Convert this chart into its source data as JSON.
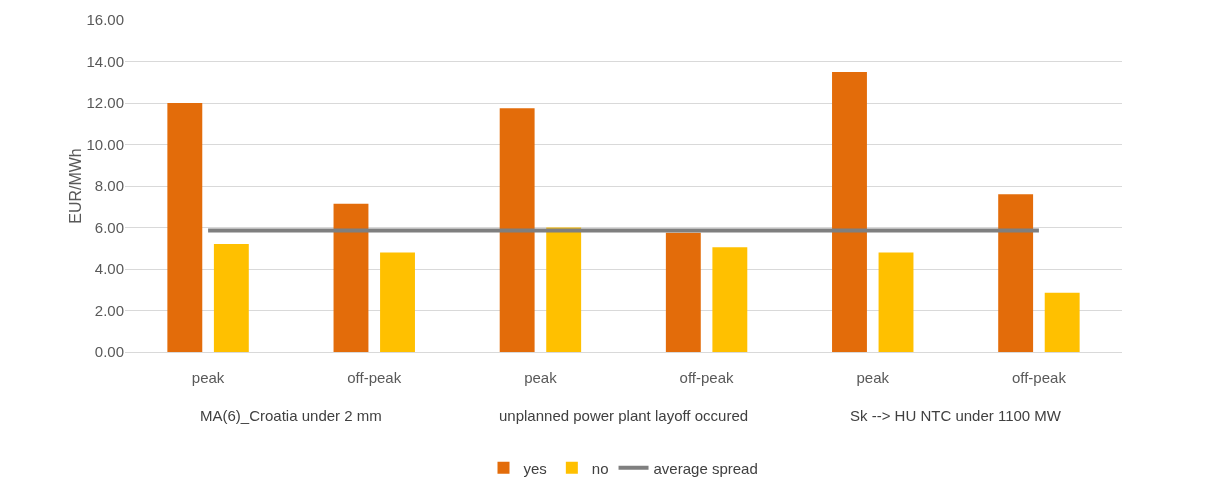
{
  "chart_data": {
    "type": "bar",
    "ylabel": "EUR/MWh",
    "categories": [
      "peak",
      "off-peak",
      "peak",
      "off-peak",
      "peak",
      "off-peak"
    ],
    "series": [
      {
        "name": "yes",
        "color": "#e36c0a",
        "values": [
          12.0,
          7.15,
          11.75,
          5.75,
          13.5,
          7.6
        ]
      },
      {
        "name": "no",
        "color": "#ffc000",
        "values": [
          5.2,
          4.8,
          6.0,
          5.05,
          4.8,
          2.85
        ]
      },
      {
        "name": "average spread",
        "type": "line",
        "color": "#7f7f7f",
        "values": [
          5.85,
          5.85,
          5.85,
          5.85,
          5.85,
          5.85
        ]
      }
    ],
    "annotations": [
      "MA(6)_Croatia under 2 mm",
      "unplanned power plant layoff occured",
      "Sk --> HU NTC under 1100 MW"
    ],
    "ylim": [
      0,
      16
    ],
    "yticks": [
      {
        "value": 0,
        "label": "0.00"
      },
      {
        "value": 2,
        "label": "2.00"
      },
      {
        "value": 4,
        "label": "4.00"
      },
      {
        "value": 6,
        "label": "6.00"
      },
      {
        "value": 8,
        "label": "8.00"
      },
      {
        "value": 10,
        "label": "10.00"
      },
      {
        "value": 12,
        "label": "12.00"
      },
      {
        "value": 14,
        "label": "14.00"
      },
      {
        "value": 16,
        "label": "16.00"
      }
    ],
    "grid": "y",
    "legend": "bottom",
    "marker": "none",
    "line_style": "solid"
  }
}
